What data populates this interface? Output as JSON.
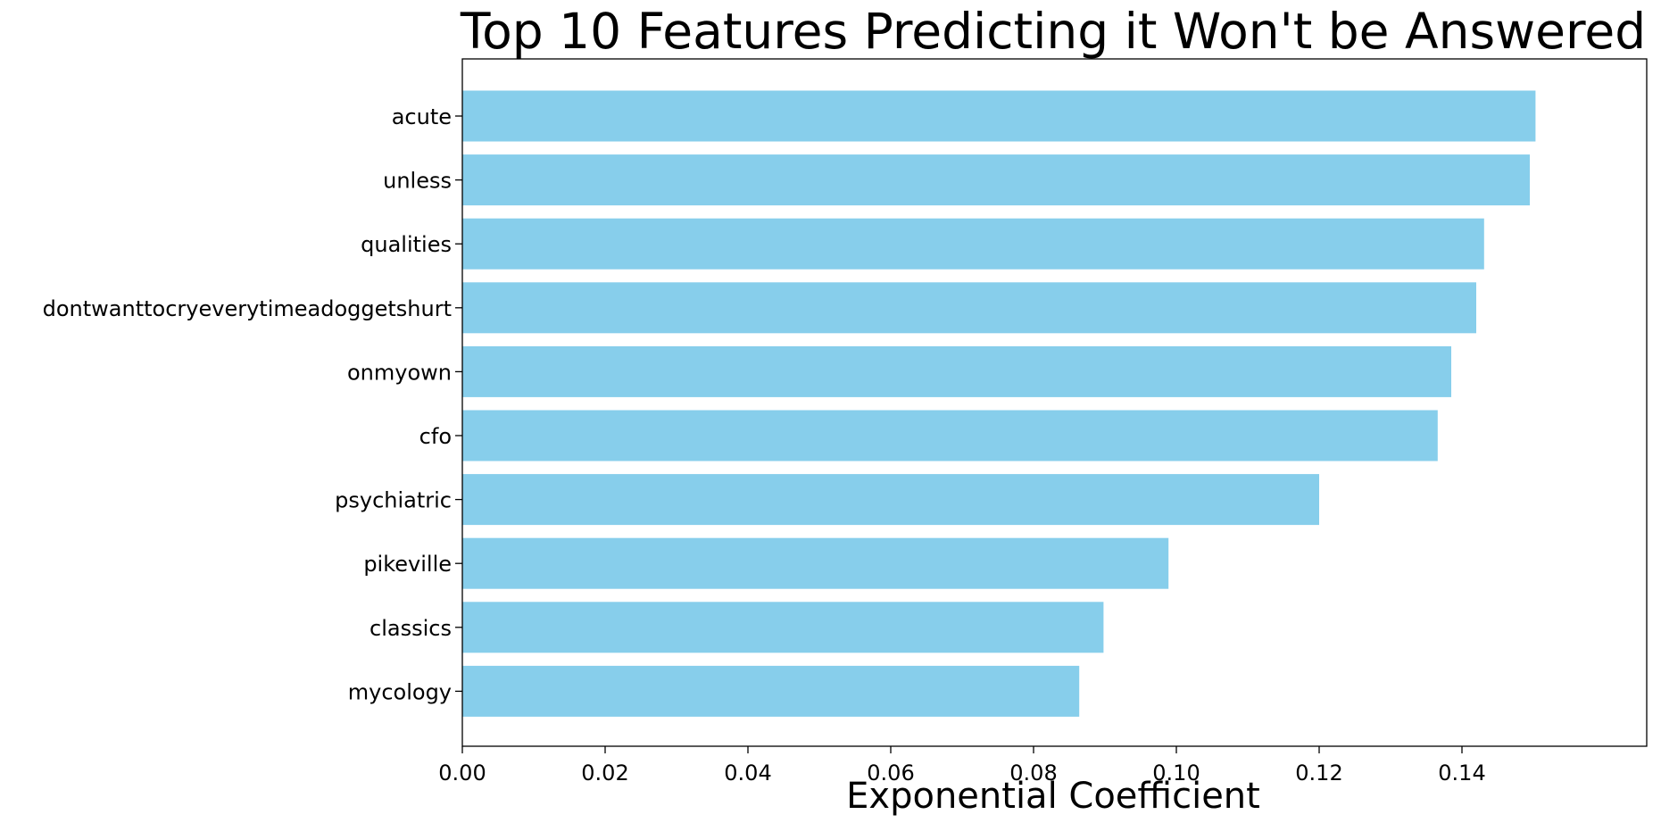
{
  "chart_data": {
    "type": "bar",
    "orientation": "horizontal",
    "title": "Top 10 Features Predicting it Won't be Answered",
    "xlabel": "Exponential Coefficient",
    "ylabel": "",
    "xlim": [
      0,
      0.157
    ],
    "xticks": [
      0.0,
      0.02,
      0.04,
      0.06,
      0.08,
      0.1,
      0.12,
      0.14
    ],
    "xtick_labels": [
      "0.00",
      "0.02",
      "0.04",
      "0.06",
      "0.08",
      "0.10",
      "0.12",
      "0.14"
    ],
    "categories": [
      "acute",
      "unless",
      "qualities",
      "dontwanttocryeverytimeadoggetshurt",
      "onmyown",
      "cfo",
      "psychiatric",
      "pikeville",
      "classics",
      "mycology"
    ],
    "values": [
      0.1503,
      0.1495,
      0.1431,
      0.142,
      0.1385,
      0.1366,
      0.12,
      0.0989,
      0.0898,
      0.0864
    ],
    "bar_color": "#87ceeb",
    "grid": false,
    "legend": false
  }
}
